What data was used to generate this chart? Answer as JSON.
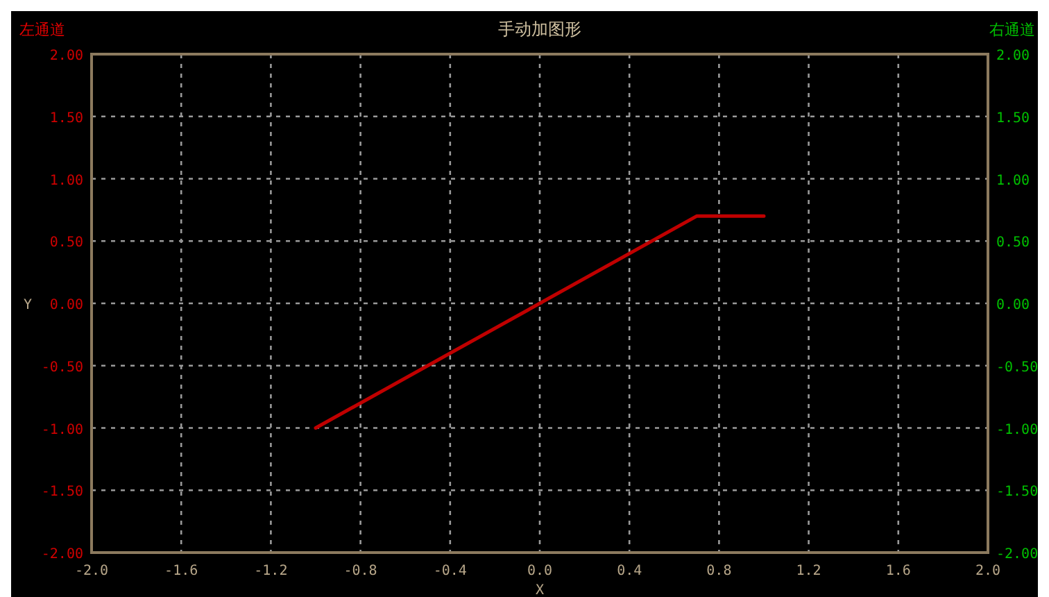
{
  "chart_data": {
    "type": "line",
    "title": "手动加图形",
    "xlabel": "X",
    "ylabel": "Y",
    "annotations": [
      "左通道",
      "右通道"
    ],
    "x": [
      -1.0,
      0.7,
      1.0
    ],
    "series": [
      {
        "color": "#c00000",
        "values": [
          -1.0,
          0.7,
          0.7
        ]
      }
    ],
    "xlim": [
      -2.0,
      2.0
    ],
    "xticks": [
      {
        "value": -2.0,
        "label": "-2.0"
      },
      {
        "value": -1.6,
        "label": "-1.6"
      },
      {
        "value": -1.2,
        "label": "-1.2"
      },
      {
        "value": -0.8,
        "label": "-0.8"
      },
      {
        "value": -0.4,
        "label": "-0.4"
      },
      {
        "value": 0,
        "label": "0.0"
      },
      {
        "value": 0.4,
        "label": "0.4"
      },
      {
        "value": 0.8,
        "label": "0.8"
      },
      {
        "value": 1.2,
        "label": "1.2"
      },
      {
        "value": 1.6,
        "label": "1.6"
      },
      {
        "value": 2.0,
        "label": "2.0"
      }
    ],
    "ylim": [
      -2,
      2
    ],
    "yticks": [
      {
        "value": -2,
        "label": "-2.00"
      },
      {
        "value": -1.5,
        "label": "-1.50"
      },
      {
        "value": -1,
        "label": "-1.00"
      },
      {
        "value": -0.5,
        "label": "-0.50"
      },
      {
        "value": 0,
        "label": "0.00"
      },
      {
        "value": 0.5,
        "label": "0.50"
      },
      {
        "value": 1,
        "label": "1.00"
      },
      {
        "value": 1.5,
        "label": "1.50"
      },
      {
        "value": 2,
        "label": "2.00"
      }
    ],
    "y2lim": [
      -2,
      2
    ],
    "y2ticks": [
      {
        "value": -2,
        "label": "-2.00"
      },
      {
        "value": -1.5,
        "label": "-1.50"
      },
      {
        "value": -1,
        "label": "-1.00"
      },
      {
        "value": -0.5,
        "label": "-0.50"
      },
      {
        "value": 0,
        "label": "0.00"
      },
      {
        "value": 0.5,
        "label": "0.50"
      },
      {
        "value": 1,
        "label": "1.00"
      },
      {
        "value": 1.5,
        "label": "1.50"
      },
      {
        "value": 2,
        "label": "2.00"
      }
    ],
    "grid": true,
    "marker": "none",
    "line_style": "solid"
  }
}
